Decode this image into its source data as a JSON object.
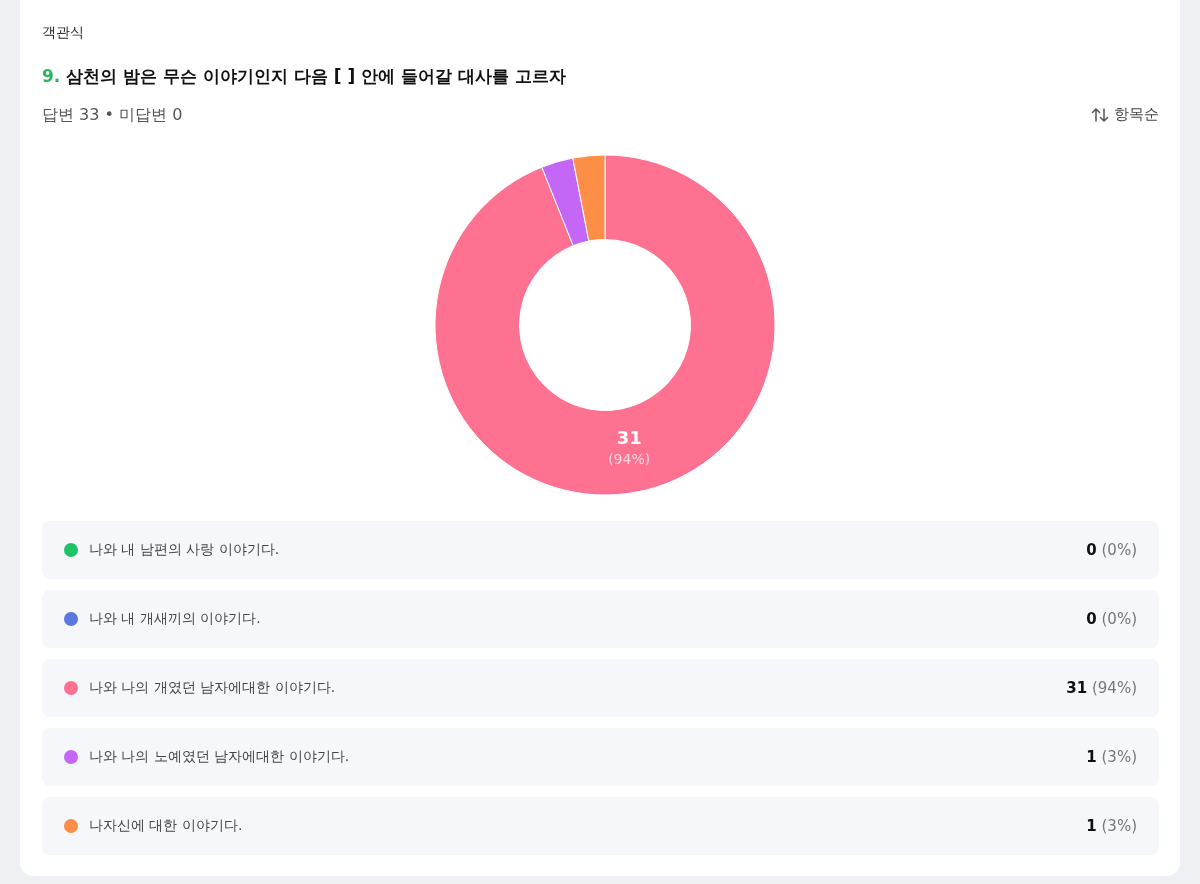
{
  "chart_data": {
    "type": "donut",
    "title": "9. 삼천의 밤은 무슨 이야기인지 다음 [ ] 안에 들어갈 대사를 고르자",
    "subtitle": "답변 33 • 미답변 0",
    "annotations": [
      "객관식",
      "항목순"
    ],
    "categories": [
      "나와 내 남편의 사랑 이야기다.",
      "나와 내 개새끼의 이야기다.",
      "나와 나의 개였던 남자에대한 이야기다.",
      "나와 나의 노예였던 남자에대한 이야기다.",
      "나자신에 대한 이야기다."
    ],
    "values": [
      0,
      0,
      31,
      1,
      1
    ],
    "colors": [
      "#1fc265",
      "#5a78e0",
      "#ff7191",
      "#c466f6",
      "#fd8e48"
    ],
    "value_labels": [
      "0 (0%)",
      "0 (0%)",
      "31 (94%)",
      "1 (3%)",
      "1 (3%)"
    ],
    "legend": "bottom"
  }
}
